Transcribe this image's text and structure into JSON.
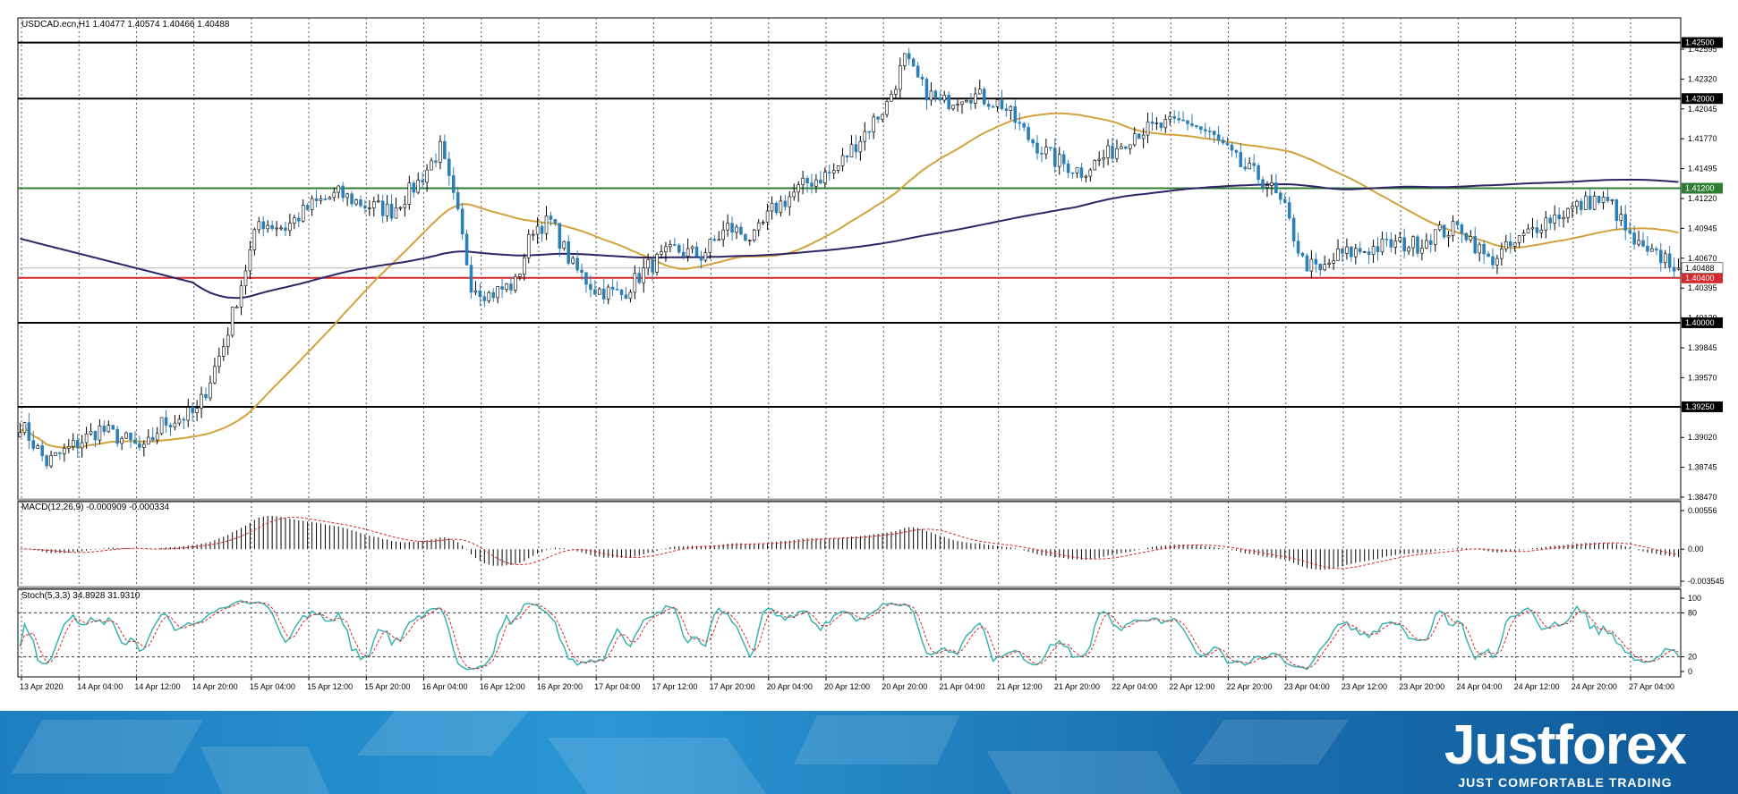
{
  "header": {
    "info": "USDCAD.ecn,H1  1.40477 1.40574 1.40466 1.40488"
  },
  "colors": {
    "bull": "#ffffff",
    "bear": "#2a7fb8",
    "ma50": "#d4a23c",
    "ma200": "#2e2466",
    "support_line": "#d6282c",
    "green_line": "#2e7d32",
    "level_line": "#000000",
    "macd_signal": "#d6282c",
    "stoch_main": "#36b5b0",
    "stoch_signal": "#d6282c"
  },
  "chart_data": [
    {
      "type": "candlestick",
      "title": "USDCAD.ecn,H1",
      "ohlc_last": {
        "open": 1.40477,
        "high": 1.40574,
        "low": 1.40466,
        "close": 1.40488
      },
      "ylim": [
        1.3842,
        1.4272
      ],
      "y_ticks": [
        "1.42595",
        "1.42320",
        "1.42045",
        "1.41770",
        "1.41495",
        "1.41220",
        "1.40945",
        "1.40670",
        "1.40395",
        "1.40120",
        "1.39845",
        "1.39570",
        "1.39295",
        "1.39020",
        "1.38745",
        "1.38470"
      ],
      "x_labels": [
        "13 Apr 2020",
        "14 Apr 04:00",
        "14 Apr 12:00",
        "14 Apr 20:00",
        "15 Apr 04:00",
        "15 Apr 12:00",
        "15 Apr 20:00",
        "16 Apr 04:00",
        "16 Apr 12:00",
        "16 Apr 20:00",
        "17 Apr 04:00",
        "17 Apr 12:00",
        "17 Apr 20:00",
        "20 Apr 04:00",
        "20 Apr 12:00",
        "20 Apr 20:00",
        "21 Apr 04:00",
        "21 Apr 12:00",
        "21 Apr 20:00",
        "22 Apr 04:00",
        "22 Apr 12:00",
        "22 Apr 20:00",
        "23 Apr 04:00",
        "23 Apr 12:00",
        "23 Apr 20:00",
        "24 Apr 04:00",
        "24 Apr 12:00",
        "24 Apr 20:00",
        "27 Apr 04:00"
      ],
      "horizontal_levels": [
        {
          "label": "1.42500",
          "value": 1.425,
          "color": "#000000"
        },
        {
          "label": "1.42000",
          "value": 1.42,
          "color": "#000000"
        },
        {
          "label": "1.41200",
          "value": 1.412,
          "color": "#2e7d32"
        },
        {
          "label": "1.40400",
          "value": 1.404,
          "color": "#d6282c"
        },
        {
          "label": "1.40000",
          "value": 1.4,
          "color": "#000000"
        },
        {
          "label": "1.39250",
          "value": 1.3925,
          "color": "#000000"
        }
      ],
      "current_price": {
        "label": "1.40488",
        "value": 1.40488
      },
      "anchors": [
        [
          0,
          1.391
        ],
        [
          6,
          1.3875
        ],
        [
          12,
          1.389
        ],
        [
          18,
          1.3905
        ],
        [
          24,
          1.3895
        ],
        [
          28,
          1.3885
        ],
        [
          32,
          1.391
        ],
        [
          40,
          1.392
        ],
        [
          46,
          1.398
        ],
        [
          50,
          1.4035
        ],
        [
          54,
          1.409
        ],
        [
          60,
          1.4085
        ],
        [
          66,
          1.4105
        ],
        [
          72,
          1.4115
        ],
        [
          78,
          1.4105
        ],
        [
          84,
          1.41
        ],
        [
          90,
          1.4125
        ],
        [
          95,
          1.4155
        ],
        [
          99,
          1.4095
        ],
        [
          102,
          1.4035
        ],
        [
          106,
          1.4025
        ],
        [
          112,
          1.4035
        ],
        [
          116,
          1.4085
        ],
        [
          120,
          1.409
        ],
        [
          125,
          1.405
        ],
        [
          130,
          1.403
        ],
        [
          136,
          1.4025
        ],
        [
          142,
          1.405
        ],
        [
          148,
          1.4065
        ],
        [
          154,
          1.406
        ],
        [
          160,
          1.4085
        ],
        [
          166,
          1.4075
        ],
        [
          170,
          1.41
        ],
        [
          178,
          1.4125
        ],
        [
          184,
          1.4135
        ],
        [
          190,
          1.4165
        ],
        [
          196,
          1.4195
        ],
        [
          200,
          1.4235
        ],
        [
          204,
          1.421
        ],
        [
          208,
          1.4195
        ],
        [
          214,
          1.4205
        ],
        [
          222,
          1.4195
        ],
        [
          228,
          1.4165
        ],
        [
          234,
          1.4145
        ],
        [
          240,
          1.4135
        ],
        [
          246,
          1.415
        ],
        [
          252,
          1.417
        ],
        [
          258,
          1.4175
        ],
        [
          264,
          1.418
        ],
        [
          270,
          1.4165
        ],
        [
          276,
          1.414
        ],
        [
          282,
          1.4125
        ],
        [
          286,
          1.41
        ],
        [
          290,
          1.4055
        ],
        [
          294,
          1.4045
        ],
        [
          298,
          1.406
        ],
        [
          304,
          1.4065
        ],
        [
          310,
          1.407
        ],
        [
          316,
          1.407
        ],
        [
          320,
          1.408
        ],
        [
          326,
          1.4085
        ],
        [
          332,
          1.4055
        ],
        [
          338,
          1.407
        ],
        [
          344,
          1.409
        ],
        [
          350,
          1.41
        ],
        [
          356,
          1.411
        ],
        [
          360,
          1.4105
        ],
        [
          364,
          1.4075
        ],
        [
          368,
          1.406
        ],
        [
          372,
          1.4058
        ],
        [
          375,
          1.4049
        ]
      ]
    },
    {
      "type": "line",
      "title": "MACD(12,26,9) -0.000909 -0.000334",
      "y_ticks": [
        "0.00556",
        "0.00",
        "-0.003545"
      ],
      "ylim": [
        -0.0039,
        0.0058
      ]
    },
    {
      "type": "line",
      "title": "Stoch(5,3,3) 34.8928 31.9310",
      "y_ticks": [
        "100",
        "80",
        "20",
        "0"
      ],
      "ylim": [
        0,
        100
      ],
      "levels": [
        80,
        20
      ]
    }
  ],
  "banner": {
    "brand_name": "Justforex",
    "tagline": "JUST COMFORTABLE TRADING"
  }
}
